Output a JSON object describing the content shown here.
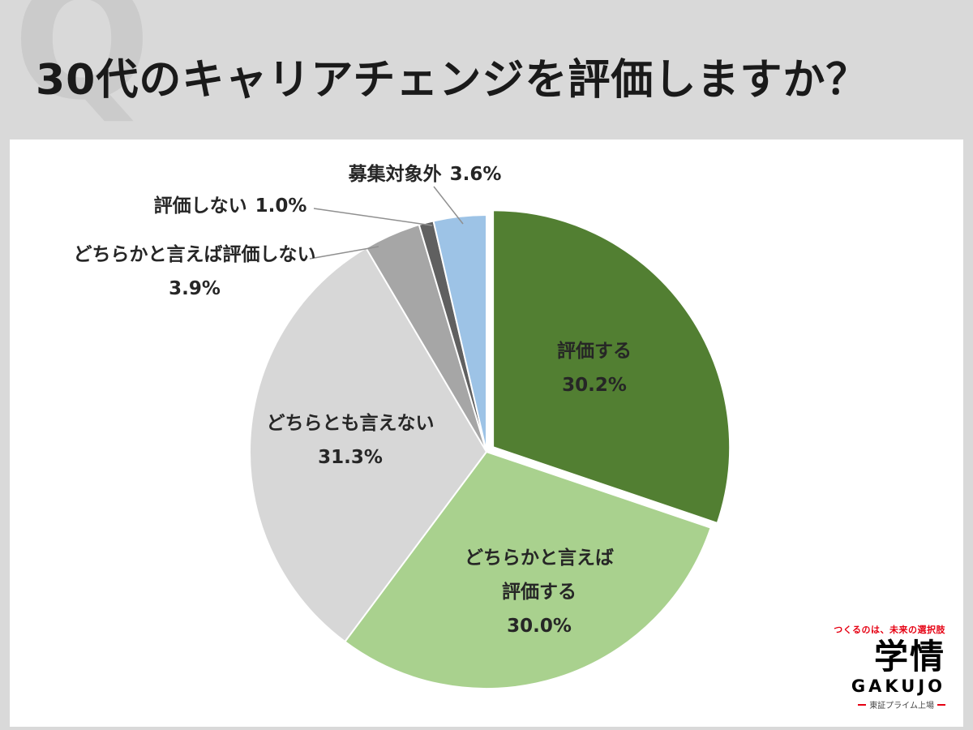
{
  "page": {
    "watermark_letter": "Q",
    "title": "30代のキャリアチェンジを評価しますか？"
  },
  "chart_data": {
    "type": "pie",
    "title": "30代のキャリアチェンジを評価しますか？",
    "value_unit": "%",
    "start_angle_deg": 0,
    "direction": "clockwise",
    "legend_position": "none",
    "labels_on_chart": true,
    "slices": [
      {
        "label": "評価する",
        "value": 30.2,
        "display": "30.2%",
        "color": "#527f32",
        "label_position": "inside",
        "label_lines": [
          "評価する"
        ]
      },
      {
        "label": "どちらかと言えば評価する",
        "value": 30.0,
        "display": "30.0%",
        "color": "#a9d18e",
        "label_position": "inside",
        "label_lines": [
          "どちらかと言えば",
          "評価する"
        ]
      },
      {
        "label": "どちらとも言えない",
        "value": 31.3,
        "display": "31.3%",
        "color": "#d7d7d7",
        "label_position": "inside",
        "label_lines": [
          "どちらとも言えない"
        ]
      },
      {
        "label": "どちらかと言えば評価しない",
        "value": 3.9,
        "display": "3.9%",
        "color": "#a6a6a6",
        "label_position": "outside",
        "label_lines": [
          "どちらかと言えば評価しない"
        ]
      },
      {
        "label": "評価しない",
        "value": 1.0,
        "display": "1.0%",
        "color": "#606060",
        "label_position": "outside",
        "label_lines": [
          "評価しない"
        ]
      },
      {
        "label": "募集対象外",
        "value": 3.6,
        "display": "3.6%",
        "color": "#9dc3e6",
        "label_position": "outside",
        "label_lines": [
          "募集対象外"
        ]
      }
    ]
  },
  "logo": {
    "tagline": "つくるのは、未来の選択肢",
    "name": "学情",
    "name_en": "GAKUJO",
    "listing": "東証プライム上場"
  }
}
